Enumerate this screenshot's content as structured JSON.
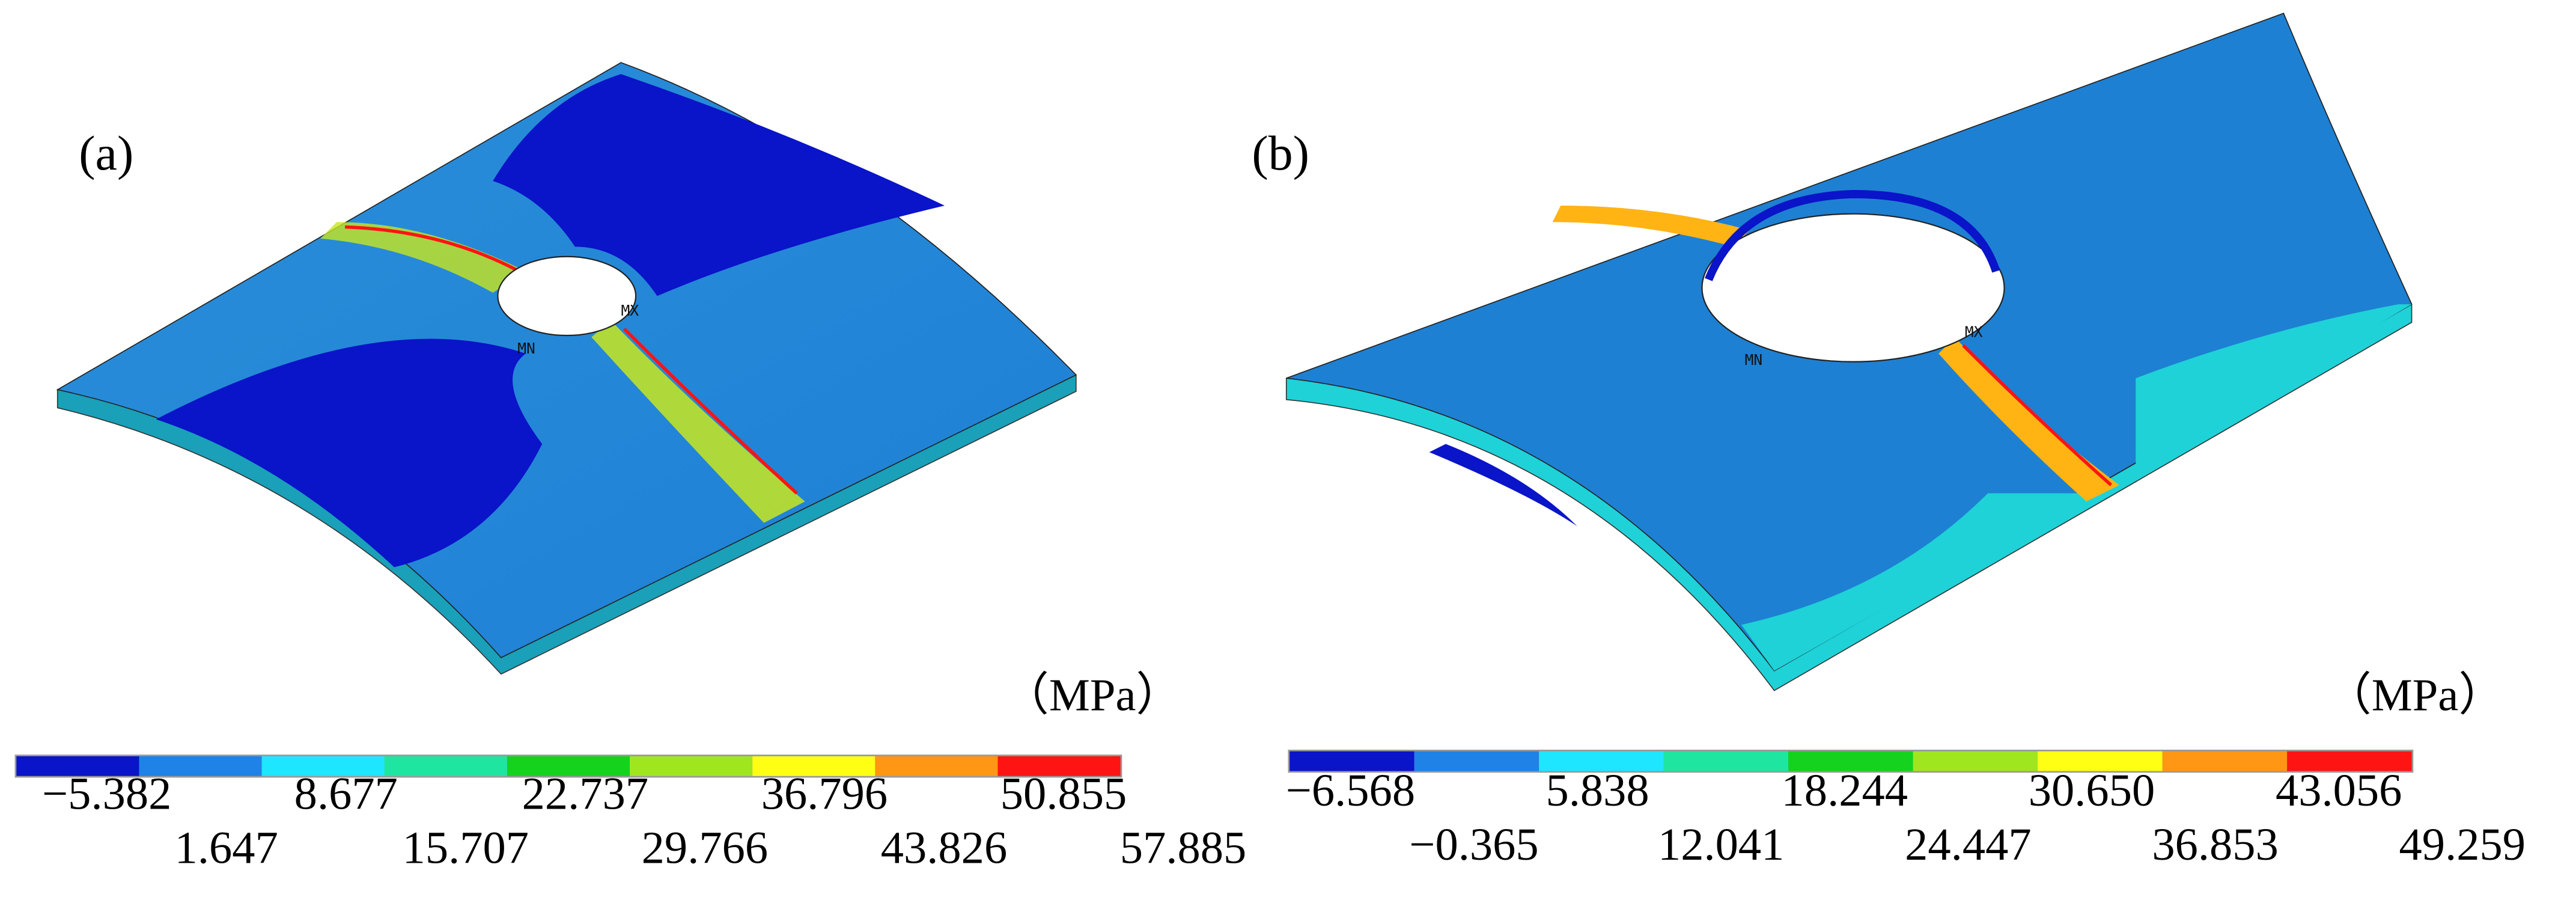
{
  "figure": {
    "panels": [
      {
        "label": "(a)",
        "unit": "（MPa）",
        "markers": [
          "MN",
          "MX"
        ],
        "colorbar_colors": [
          "#0a14c8",
          "#1e82e6",
          "#1ee6ff",
          "#1ee6a0",
          "#14d21e",
          "#a0e61e",
          "#ffff14",
          "#ff9614",
          "#ff1414"
        ],
        "ticks": [
          "−5.382",
          "1.647",
          "8.677",
          "15.707",
          "22.737",
          "29.766",
          "36.796",
          "43.826",
          "50.855",
          "57.885"
        ]
      },
      {
        "label": "(b)",
        "unit": "（MPa）",
        "markers": [
          "MN",
          "MX"
        ],
        "colorbar_colors": [
          "#0a14c8",
          "#1e82e6",
          "#1ee6ff",
          "#1ee6a0",
          "#14d21e",
          "#a0e61e",
          "#ffff14",
          "#ff9614",
          "#ff1414"
        ],
        "ticks": [
          "−6.568",
          "−0.365",
          "5.838",
          "12.041",
          "18.244",
          "24.447",
          "30.650",
          "36.853",
          "43.056",
          "49.259"
        ]
      }
    ]
  }
}
